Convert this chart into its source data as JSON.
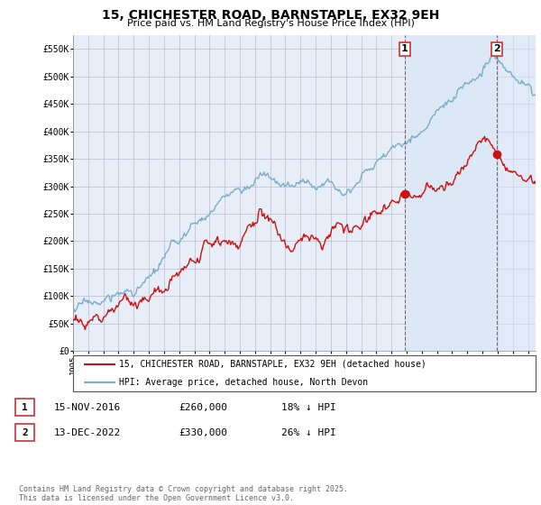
{
  "title": "15, CHICHESTER ROAD, BARNSTAPLE, EX32 9EH",
  "subtitle": "Price paid vs. HM Land Registry's House Price Index (HPI)",
  "ylabel_ticks": [
    "£0",
    "£50K",
    "£100K",
    "£150K",
    "£200K",
    "£250K",
    "£300K",
    "£350K",
    "£400K",
    "£450K",
    "£500K",
    "£550K"
  ],
  "ytick_vals": [
    0,
    50000,
    100000,
    150000,
    200000,
    250000,
    300000,
    350000,
    400000,
    450000,
    500000,
    550000
  ],
  "ylim": [
    0,
    575000
  ],
  "background_color": "#ffffff",
  "plot_bg_color": "#e8eef8",
  "shade_color": "#dce8f5",
  "hpi_color": "#7aadcc",
  "price_color": "#cc1111",
  "vline_color": "#cc3333",
  "marker1_x": 2016.88,
  "marker2_x": 2022.96,
  "marker1_y": 260000,
  "marker2_y": 330000,
  "legend_label_price": "15, CHICHESTER ROAD, BARNSTAPLE, EX32 9EH (detached house)",
  "legend_label_hpi": "HPI: Average price, detached house, North Devon",
  "annotation1_label": "1",
  "annotation2_label": "2",
  "table_row1": [
    "1",
    "15-NOV-2016",
    "£260,000",
    "18% ↓ HPI"
  ],
  "table_row2": [
    "2",
    "13-DEC-2022",
    "£330,000",
    "26% ↓ HPI"
  ],
  "footer": "Contains HM Land Registry data © Crown copyright and database right 2025.\nThis data is licensed under the Open Government Licence v3.0.",
  "xmin": 1995,
  "xmax": 2025.5,
  "noise_seed": 17
}
